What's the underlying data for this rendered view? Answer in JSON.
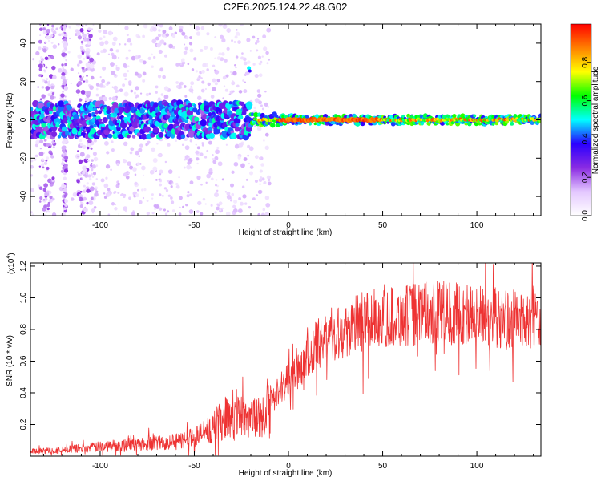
{
  "figure": {
    "title": "C2E6.2025.124.22.48.G02"
  },
  "chart_data": [
    {
      "type": "heatmap",
      "id": "spectrogram",
      "xlabel": "Height of straight line (km)",
      "ylabel": "Frequency (Hz)",
      "xlim": [
        -137,
        134
      ],
      "ylim": [
        -50,
        50
      ],
      "x_ticks": [
        -100,
        -50,
        0,
        50,
        100
      ],
      "y_ticks": [
        -40,
        -20,
        0,
        20,
        40
      ],
      "grid": false,
      "colorbar": {
        "label": "Normalized spectral amplitude",
        "range": [
          0,
          1
        ],
        "ticks": [
          0.0,
          0.2,
          0.4,
          0.6,
          0.8
        ],
        "tick_labels": [
          "0.0",
          "0.2",
          "0.4",
          "0.6",
          "0.8"
        ],
        "colors": [
          "#ffffff",
          "#e4c8ff",
          "#8a2be2",
          "#2a00ff",
          "#00ffff",
          "#00ff00",
          "#ffff00",
          "#ff8000",
          "#ff0000"
        ]
      },
      "features": {
        "main_line_frequency_hz": 0,
        "strong_segment_km": [
          -5,
          48
        ],
        "noisy_region_km": [
          -137,
          -20
        ],
        "bright_spot": {
          "x_km": -21,
          "freq_hz": 27
        }
      }
    },
    {
      "type": "line",
      "id": "snr",
      "xlabel": "Height of straight line (km)",
      "ylabel": "SNR (10 * v/v)",
      "y_multiplier_label": "(x10",
      "y_multiplier_exp": "4",
      "xlim": [
        -137,
        134
      ],
      "ylim": [
        0,
        1.22
      ],
      "x_ticks": [
        -100,
        -50,
        0,
        50,
        100
      ],
      "y_ticks": [
        0.2,
        0.4,
        0.6,
        0.8,
        1.0,
        1.2
      ],
      "y_tick_labels": [
        "0.2",
        "0.4",
        "0.6",
        "0.8",
        "1.0",
        "1.2"
      ],
      "grid": false,
      "line_color": "#ee3333",
      "series": [
        {
          "x": [
            -137,
            -120,
            -100,
            -80,
            -60,
            -50,
            -40,
            -30,
            -20,
            -15,
            -10,
            -5,
            0,
            5,
            10,
            15,
            20,
            30,
            40,
            50,
            60,
            70,
            80,
            90,
            100,
            110,
            120,
            130,
            134
          ],
          "y": [
            0.03,
            0.04,
            0.06,
            0.08,
            0.09,
            0.12,
            0.18,
            0.28,
            0.25,
            0.22,
            0.33,
            0.42,
            0.5,
            0.55,
            0.62,
            0.7,
            0.76,
            0.8,
            0.85,
            0.88,
            0.88,
            0.9,
            0.91,
            0.9,
            0.89,
            0.87,
            0.86,
            0.88,
            0.89
          ]
        }
      ]
    }
  ]
}
